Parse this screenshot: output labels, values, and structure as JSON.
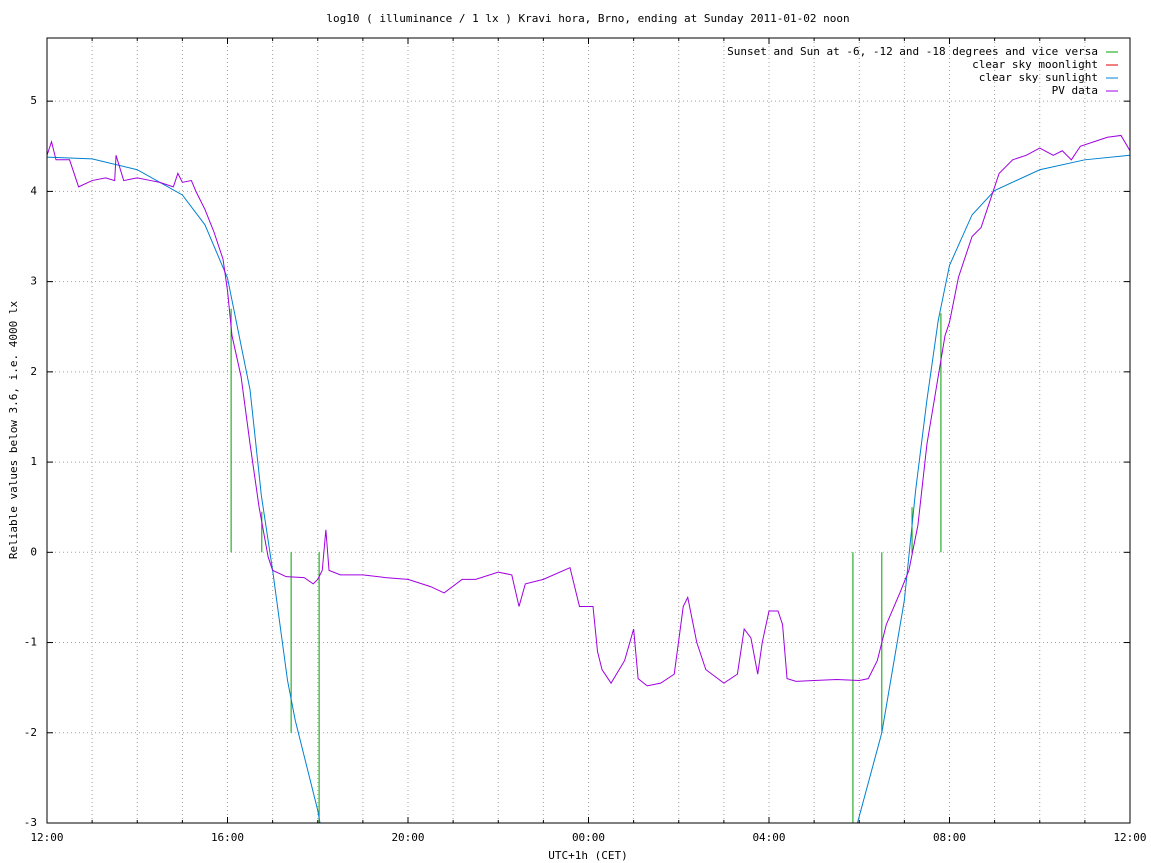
{
  "chart_data": {
    "type": "line",
    "title": "log10 ( illuminance / 1 lx ) Kravi hora, Brno, ending at Sunday 2011-01-02 noon",
    "xlabel": "UTC+1h (CET)",
    "ylabel": "Reliable values below 3.6, i.e. 4000 lx",
    "xlim": [
      0,
      24
    ],
    "ylim": [
      -3,
      5.7
    ],
    "xticks": [
      {
        "value": 0,
        "label": "12:00"
      },
      {
        "value": 4,
        "label": "16:00"
      },
      {
        "value": 8,
        "label": "20:00"
      },
      {
        "value": 12,
        "label": "00:00"
      },
      {
        "value": 16,
        "label": "04:00"
      },
      {
        "value": 20,
        "label": "08:00"
      },
      {
        "value": 24,
        "label": "12:00"
      }
    ],
    "xminorticks": [
      1,
      2,
      3,
      5,
      6,
      7,
      9,
      10,
      11,
      13,
      14,
      15,
      17,
      18,
      19,
      21,
      22,
      23
    ],
    "yticks": [
      -3,
      -2,
      -1,
      0,
      1,
      2,
      3,
      4,
      5
    ],
    "grid": true,
    "legend": "top-right",
    "series": [
      {
        "name": "Sunset and Sun at -6, -12 and -18 degrees and vice versa",
        "color": "#00a000",
        "style": "impulses",
        "x": [
          4.08,
          4.76,
          5.41,
          6.03,
          17.86,
          18.5,
          19.17,
          19.81
        ],
        "values": [
          2.7,
          0.45,
          -2.0,
          -3,
          -3,
          -2.0,
          0.5,
          2.65
        ]
      },
      {
        "name": "clear sky moonlight",
        "color": "#e00000",
        "style": "lines",
        "x": [],
        "values": []
      },
      {
        "name": "clear sky sunlight",
        "color": "#0080d0",
        "style": "lines",
        "x": [
          0,
          1,
          2,
          3,
          3.5,
          4,
          4.5,
          4.75,
          5,
          5.33,
          5.5,
          6,
          6.05,
          17.96,
          18.5,
          19,
          19.25,
          19.5,
          19.75,
          20,
          20.5,
          21,
          22,
          23,
          24
        ],
        "values": [
          4.38,
          4.36,
          4.24,
          3.96,
          3.63,
          3.04,
          1.8,
          0.63,
          -0.2,
          -1.42,
          -1.86,
          -2.86,
          -3,
          -3,
          -2.0,
          -0.53,
          0.69,
          1.69,
          2.57,
          3.18,
          3.74,
          4.01,
          4.24,
          4.35,
          4.4
        ]
      },
      {
        "name": "PV data",
        "color": "#a000e0",
        "style": "lines",
        "x": [
          0,
          0.1,
          0.2,
          0.5,
          0.7,
          1.0,
          1.3,
          1.5,
          1.53,
          1.7,
          2.0,
          2.3,
          2.5,
          2.8,
          2.9,
          3.0,
          3.2,
          3.3,
          3.5,
          3.7,
          3.9,
          4.0,
          4.1,
          4.3,
          4.5,
          4.7,
          4.9,
          5.0,
          5.3,
          5.7,
          5.9,
          6.0,
          6.1,
          6.18,
          6.25,
          6.5,
          7.0,
          7.5,
          8.0,
          8.5,
          8.8,
          9.2,
          9.5,
          10.0,
          10.3,
          10.46,
          10.6,
          11.0,
          11.59,
          11.8,
          12.1,
          12.2,
          12.3,
          12.5,
          12.8,
          13.0,
          13.1,
          13.3,
          13.6,
          13.9,
          14.1,
          14.2,
          14.4,
          14.6,
          15.0,
          15.3,
          15.45,
          15.6,
          15.75,
          15.85,
          16.0,
          16.2,
          16.3,
          16.4,
          16.6,
          17.0,
          17.5,
          18.0,
          18.2,
          18.4,
          18.6,
          18.9,
          19.1,
          19.3,
          19.5,
          19.7,
          19.9,
          20.0,
          20.2,
          20.5,
          20.7,
          20.9,
          21.1,
          21.4,
          21.7,
          22.0,
          22.3,
          22.5,
          22.7,
          22.9,
          23.2,
          23.5,
          23.8,
          24
        ],
        "values": [
          4.4,
          4.55,
          4.35,
          4.35,
          4.05,
          4.12,
          4.15,
          4.12,
          4.4,
          4.12,
          4.15,
          4.12,
          4.1,
          4.05,
          4.2,
          4.1,
          4.12,
          4.0,
          3.8,
          3.55,
          3.25,
          2.9,
          2.4,
          1.95,
          1.2,
          0.5,
          -0.05,
          -0.2,
          -0.27,
          -0.28,
          -0.35,
          -0.3,
          -0.2,
          0.25,
          -0.2,
          -0.25,
          -0.25,
          -0.28,
          -0.3,
          -0.38,
          -0.45,
          -0.3,
          -0.3,
          -0.22,
          -0.25,
          -0.6,
          -0.35,
          -0.3,
          -0.17,
          -0.6,
          -0.6,
          -1.1,
          -1.3,
          -1.45,
          -1.2,
          -0.85,
          -1.4,
          -1.48,
          -1.45,
          -1.35,
          -0.6,
          -0.5,
          -1.0,
          -1.3,
          -1.45,
          -1.35,
          -0.85,
          -0.95,
          -1.35,
          -1.0,
          -0.65,
          -0.65,
          -0.8,
          -1.4,
          -1.43,
          -1.42,
          -1.41,
          -1.42,
          -1.4,
          -1.2,
          -0.8,
          -0.45,
          -0.2,
          0.3,
          1.2,
          1.8,
          2.4,
          2.55,
          3.05,
          3.5,
          3.6,
          3.9,
          4.2,
          4.35,
          4.4,
          4.48,
          4.4,
          4.45,
          4.35,
          4.5,
          4.55,
          4.6,
          4.62,
          4.45
        ]
      }
    ]
  }
}
